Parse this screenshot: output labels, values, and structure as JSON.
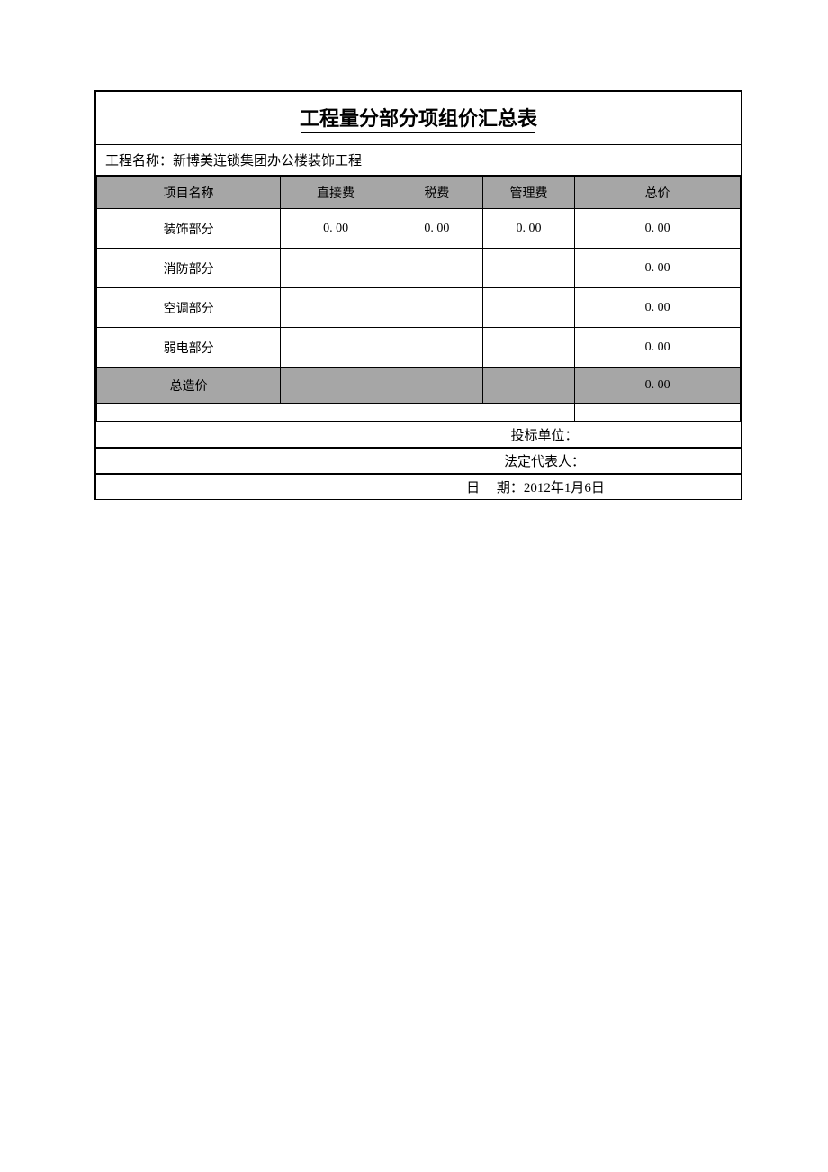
{
  "title": "工程量分部分项组价汇总表",
  "project_name_label": "工程名称：",
  "project_name": "新博美连锁集团办公楼装饰工程",
  "columns": {
    "item": "项目名称",
    "direct": "直接费",
    "tax": "税费",
    "mgmt": "管理费",
    "total": "总价"
  },
  "rows": [
    {
      "item": "装饰部分",
      "direct": "0. 00",
      "tax": "0. 00",
      "mgmt": "0. 00",
      "total": "0. 00"
    },
    {
      "item": "消防部分",
      "direct": "",
      "tax": "",
      "mgmt": "",
      "total": "0. 00"
    },
    {
      "item": "空调部分",
      "direct": "",
      "tax": "",
      "mgmt": "",
      "total": "0. 00"
    },
    {
      "item": "弱电部分",
      "direct": "",
      "tax": "",
      "mgmt": "",
      "total": "0. 00"
    }
  ],
  "total_row": {
    "item": "总造价",
    "direct": "",
    "tax": "",
    "mgmt": "",
    "total": "0. 00"
  },
  "footer": {
    "bidder_label": "投标单位：",
    "bidder_value": "",
    "legal_rep_label": "法定代表人：",
    "legal_rep_value": "",
    "date_label_a": "日",
    "date_label_b": "期：",
    "date_value": "2012年1月6日"
  },
  "colors": {
    "header_bg": "#a6a6a6",
    "border": "#000000",
    "page_bg": "#ffffff"
  }
}
